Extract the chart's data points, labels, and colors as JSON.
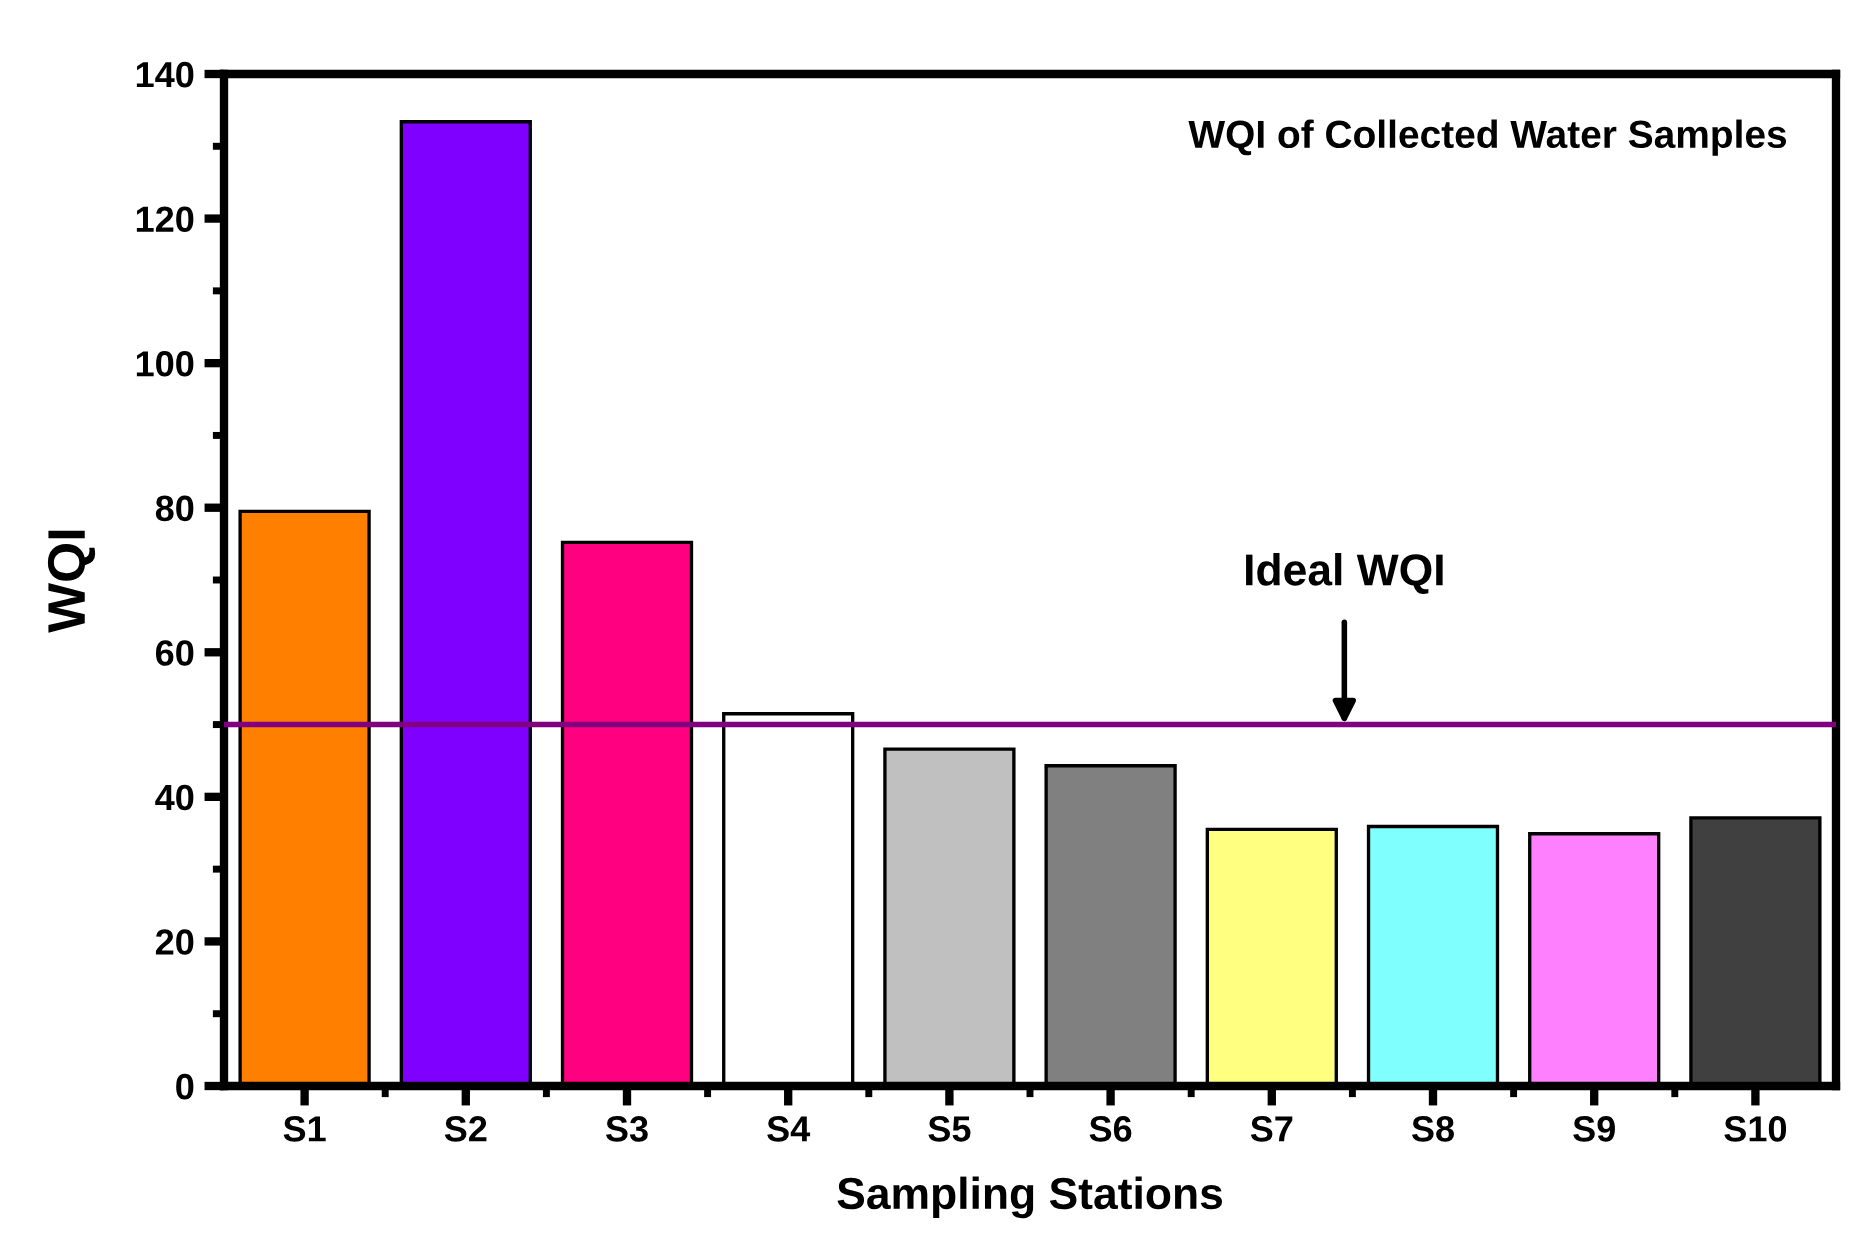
{
  "chart_data": {
    "type": "bar",
    "title": "WQI of Collected Water Samples",
    "xlabel": "Sampling Stations",
    "ylabel": "WQI",
    "categories": [
      "S1",
      "S2",
      "S3",
      "S4",
      "S5",
      "S6",
      "S7",
      "S8",
      "S9",
      "S10"
    ],
    "values": [
      79.5,
      133.4,
      75.2,
      51.5,
      46.6,
      44.3,
      35.5,
      35.9,
      34.9,
      37.1
    ],
    "colors": [
      "#ff8000",
      "#8000ff",
      "#ff0080",
      "#ffffff",
      "#c0c0c0",
      "#808080",
      "#ffff80",
      "#80ffff",
      "#ff80ff",
      "#404040"
    ],
    "ylim": [
      0,
      140
    ],
    "yticks": [
      0,
      20,
      40,
      60,
      80,
      100,
      120,
      140
    ],
    "ref_lines": [
      {
        "axis": "y",
        "value": 50,
        "label": "Ideal WQI",
        "color": "#800080"
      }
    ],
    "grid": false,
    "legend": false
  }
}
